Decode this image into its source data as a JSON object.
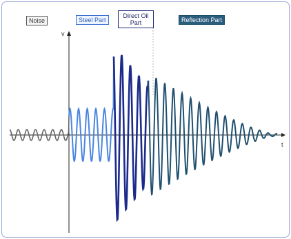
{
  "labels": {
    "noise": "Noise",
    "steel": "Steel Part",
    "direct_oil": "Direct Oil Part",
    "reflection": "Reflection Part"
  },
  "axes": {
    "y": "v",
    "x": "t"
  },
  "colors": {
    "noise": "#666666",
    "steel": "#4a86e0",
    "direct_oil": "#1c2a8c",
    "reflection": "#1f4f6f",
    "axis": "#222222",
    "divider": "#bbbbbb"
  }
}
